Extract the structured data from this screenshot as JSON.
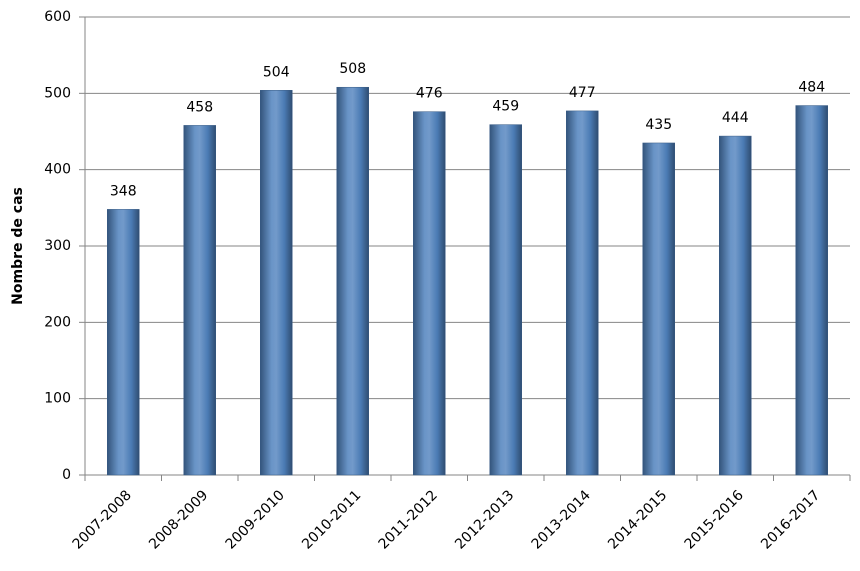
{
  "chart_data": {
    "type": "bar",
    "ylabel": "Nombre de cas",
    "categories": [
      "2007-2008",
      "2008-2009",
      "2009-2010",
      "2010-2011",
      "2011-2012",
      "2012-2013",
      "2013-2014",
      "2014-2015",
      "2015-2016",
      "2016-2017"
    ],
    "values": [
      348,
      458,
      504,
      508,
      476,
      459,
      477,
      435,
      444,
      484
    ],
    "color": "#4f81bd",
    "ylim": [
      0,
      600
    ],
    "yticks": [
      0,
      100,
      200,
      300,
      400,
      500,
      600
    ],
    "grid": true
  }
}
